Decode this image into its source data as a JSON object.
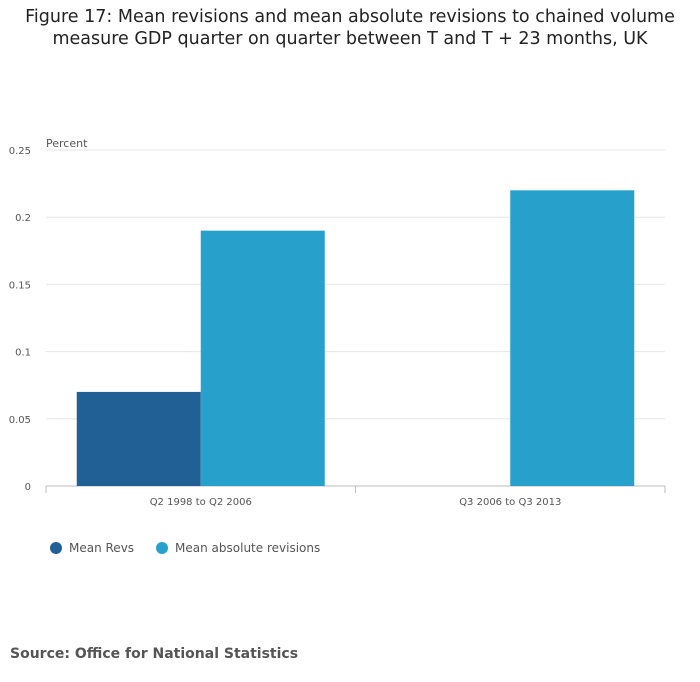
{
  "title": {
    "line1": "Figure 17: Mean revisions and mean absolute revisions to chained volume",
    "line2": "measure GDP quarter on quarter between T and T + 23 months, UK"
  },
  "chart_data": {
    "type": "bar",
    "title": "Figure 17: Mean revisions and mean absolute revisions to chained volume measure GDP quarter on quarter between T and T + 23 months, UK",
    "xlabel": "",
    "ylabel": "Percent",
    "ylim": [
      0,
      0.25
    ],
    "yticks": [
      "0",
      "0.05",
      "0.1",
      "0.15",
      "0.2",
      "0.25"
    ],
    "categories": [
      "Q2 1998 to Q2 2006",
      "Q3 2006 to Q3 2013"
    ],
    "series": [
      {
        "name": "Mean Revs",
        "values": [
          0.07,
          0
        ],
        "color": "#206095"
      },
      {
        "name": "Mean absolute revisions",
        "values": [
          0.19,
          0.22
        ],
        "color": "#27a0cc"
      }
    ],
    "grid": true,
    "legend_position": "bottom-left"
  },
  "source": "Source: Office for National Statistics"
}
